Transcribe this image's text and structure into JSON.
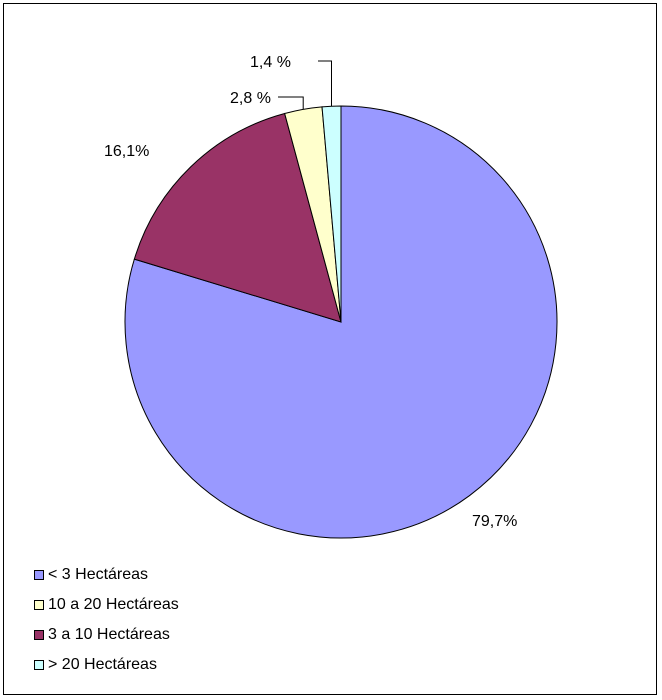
{
  "chart_data": {
    "type": "pie",
    "slices": [
      {
        "name": "< 3 Hectáreas",
        "value": 79.7,
        "label": "79,7%",
        "color": "#9999ff"
      },
      {
        "name": "3 a 10 Hectáreas",
        "value": 16.1,
        "label": "16,1%",
        "color": "#993366"
      },
      {
        "name": "10 a 20 Hectáreas",
        "value": 2.8,
        "label": "2,8 %",
        "color": "#ffffcc"
      },
      {
        "name": "> 20 Hectáreas",
        "value": 1.4,
        "label": "1,4 %",
        "color": "#ccffff"
      }
    ],
    "legend": [
      {
        "name": "< 3 Hectáreas",
        "color": "#9999ff"
      },
      {
        "name": "10 a 20 Hectáreas",
        "color": "#ffffcc"
      },
      {
        "name": "3 a 10 Hectáreas",
        "color": "#993366"
      },
      {
        "name": "> 20 Hectáreas",
        "color": "#ccffff"
      }
    ],
    "legend_position": "bottom-left"
  }
}
